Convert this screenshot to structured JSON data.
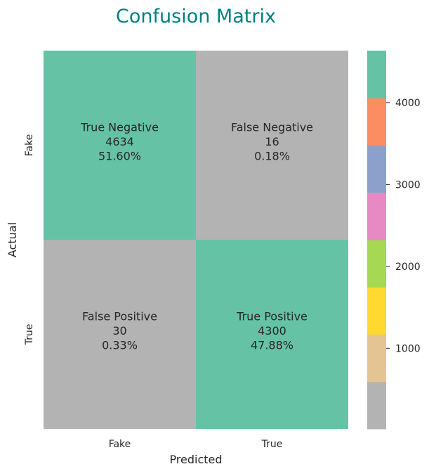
{
  "chart_data": {
    "type": "heatmap",
    "title": "Confusion Matrix",
    "xlabel": "Predicted",
    "ylabel": "Actual",
    "x_categories": [
      "Fake",
      "True"
    ],
    "y_categories": [
      "Fake",
      "True"
    ],
    "cells": [
      [
        {
          "label": "True Negative",
          "count": 4634,
          "percent": "51.60%"
        },
        {
          "label": "False Negative",
          "count": 16,
          "percent": "0.18%"
        }
      ],
      [
        {
          "label": "False Positive",
          "count": 30,
          "percent": "0.33%"
        },
        {
          "label": "True Positive",
          "count": 4300,
          "percent": "47.88%"
        }
      ]
    ],
    "colorbar": {
      "vmin": 16,
      "vmax": 4634,
      "ticks": [
        1000,
        2000,
        3000,
        4000
      ],
      "colormap": "Set2",
      "colors": [
        "#b3b3b3",
        "#e5c494",
        "#ffd92f",
        "#a6d854",
        "#e78ac3",
        "#8da0cb",
        "#fc8d62",
        "#66c2a5"
      ]
    },
    "colors": {
      "title": "#008080",
      "text": "#262626"
    },
    "grid": false,
    "legend": "colorbar-right"
  }
}
